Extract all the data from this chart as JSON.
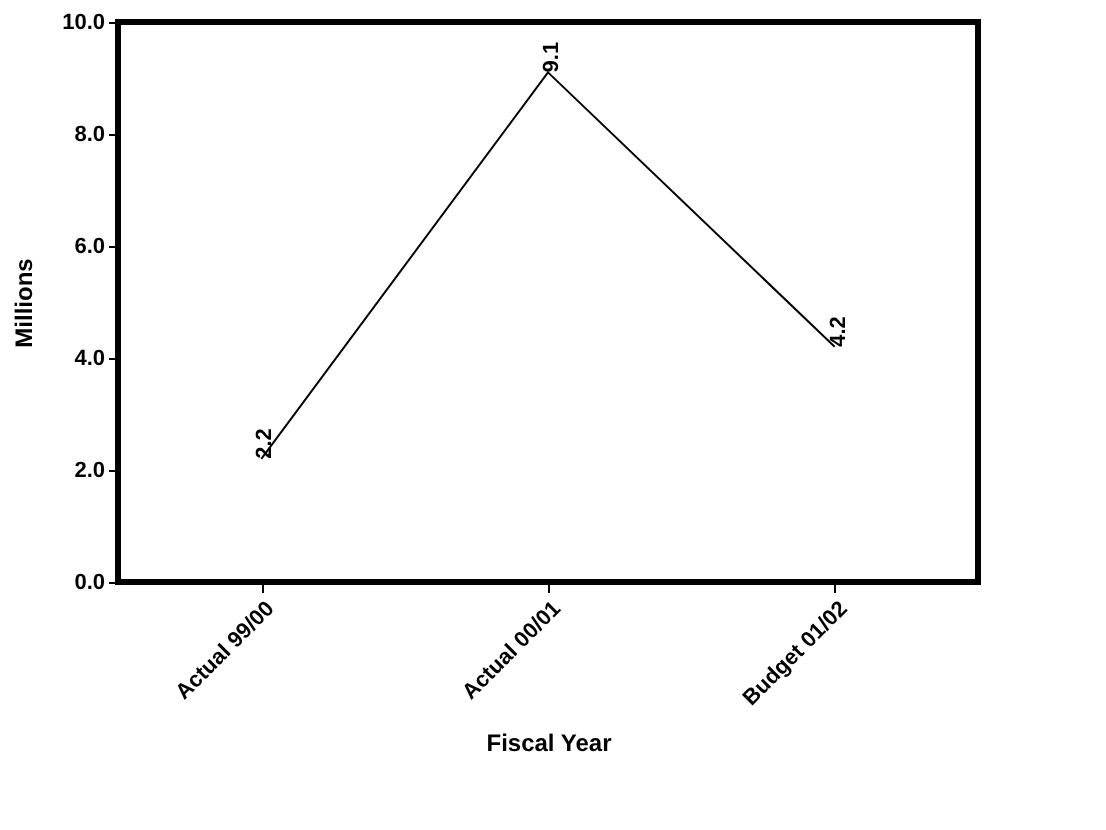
{
  "chart_data": {
    "type": "line",
    "xlabel": "Fiscal Year",
    "ylabel": "Millions",
    "categories": [
      "Actual 99/00",
      "Actual 00/01",
      "Budget 01/02"
    ],
    "series": [
      {
        "color": "#000000",
        "values": [
          2.2,
          9.1,
          4.2
        ]
      }
    ],
    "ylim": [
      0,
      10
    ],
    "yticks": [
      {
        "value": 0,
        "label": "0.0"
      },
      {
        "value": 2,
        "label": "2.0"
      },
      {
        "value": 4,
        "label": "4.0"
      },
      {
        "value": 6,
        "label": "6.0"
      },
      {
        "value": 8,
        "label": "8.0"
      },
      {
        "value": 10,
        "label": "10.0"
      }
    ],
    "data_labels": true,
    "grid": false,
    "marker": "none",
    "line_style": "solid"
  }
}
